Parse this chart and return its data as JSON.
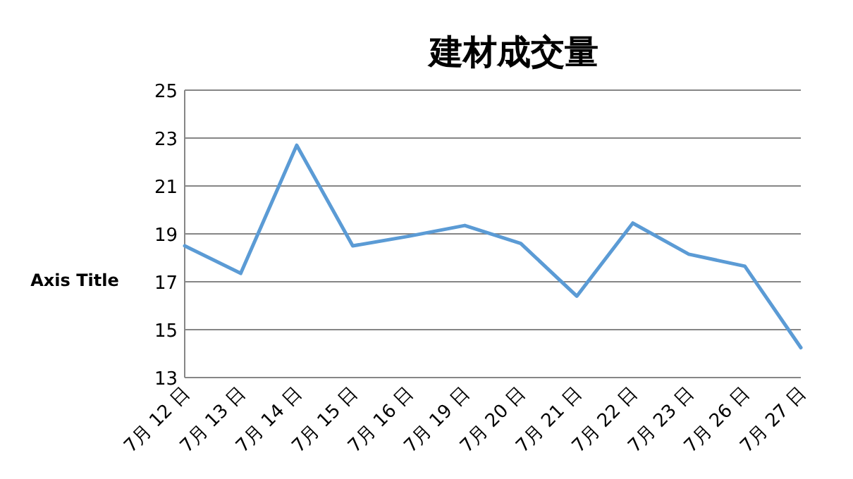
{
  "chart_data": {
    "type": "line",
    "title": "建材成交量",
    "ylabel": "Axis Title",
    "categories": [
      "7月 12 日",
      "7月 13 日",
      "7月 14 日",
      "7月 15 日",
      "7月 16 日",
      "7月 19 日",
      "7月 20 日",
      "7月 21 日",
      "7月 22 日",
      "7月 23 日",
      "7月 26 日",
      "7月 27 日"
    ],
    "series": [
      {
        "color": "#5b9bd5",
        "values": [
          18.5,
          17.35,
          22.7,
          18.5,
          18.9,
          19.35,
          18.6,
          16.4,
          19.45,
          18.15,
          17.65,
          14.25
        ]
      }
    ],
    "ylim": [
      13,
      25
    ],
    "yticks": [
      13,
      15,
      17,
      19,
      21,
      23,
      25
    ],
    "grid": "y",
    "marker": "none",
    "line_style": "solid"
  }
}
